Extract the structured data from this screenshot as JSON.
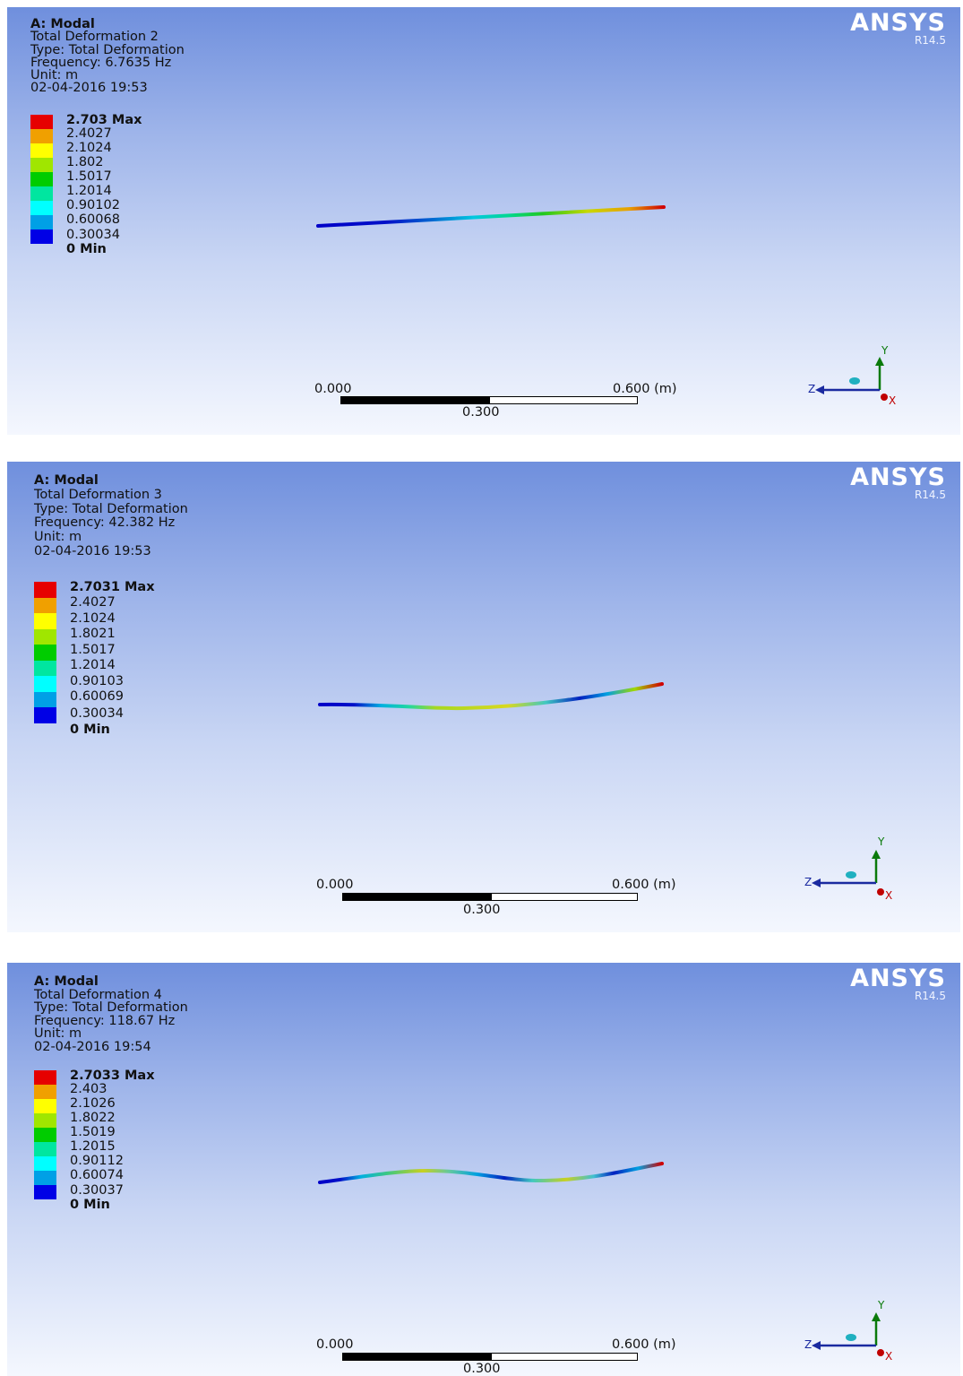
{
  "brand": {
    "name": "ANSYS",
    "version": "R14.5"
  },
  "legend_colors": [
    "#e60000",
    "#f0a000",
    "#ffff00",
    "#a0e600",
    "#00cc00",
    "#00e6a0",
    "#00ffff",
    "#00a0e6",
    "#0000e6"
  ],
  "panels": [
    {
      "header": "A: Modal",
      "title": "Total Deformation 2",
      "type": "Type: Total Deformation",
      "frequency": "Frequency: 6.7635 Hz",
      "unit": "Unit: m",
      "datetime": "02-04-2016 19:53",
      "legend": [
        "2.703 Max",
        "2.4027",
        "2.1024",
        "1.802",
        "1.5017",
        "1.2014",
        "0.90102",
        "0.60068",
        "0.30034",
        "0 Min"
      ],
      "scale": {
        "start": "0.000",
        "end": "0.600 (m)",
        "mid": "0.300"
      }
    },
    {
      "header": "A: Modal",
      "title": "Total Deformation 3",
      "type": "Type: Total Deformation",
      "frequency": "Frequency: 42.382 Hz",
      "unit": "Unit: m",
      "datetime": "02-04-2016 19:53",
      "legend": [
        "2.7031 Max",
        "2.4027",
        "2.1024",
        "1.8021",
        "1.5017",
        "1.2014",
        "0.90103",
        "0.60069",
        "0.30034",
        "0 Min"
      ],
      "scale": {
        "start": "0.000",
        "end": "0.600 (m)",
        "mid": "0.300"
      }
    },
    {
      "header": "A: Modal",
      "title": "Total Deformation 4",
      "type": "Type: Total Deformation",
      "frequency": "Frequency: 118.67 Hz",
      "unit": "Unit: m",
      "datetime": "02-04-2016 19:54",
      "legend": [
        "2.7033 Max",
        "2.403",
        "2.1026",
        "1.8022",
        "1.5019",
        "1.2015",
        "0.90112",
        "0.60074",
        "0.30037",
        "0 Min"
      ],
      "scale": {
        "start": "0.000",
        "end": "0.600 (m)",
        "mid": "0.300"
      }
    }
  ],
  "triad": {
    "y": "Y",
    "z": "Z",
    "x": "X"
  }
}
